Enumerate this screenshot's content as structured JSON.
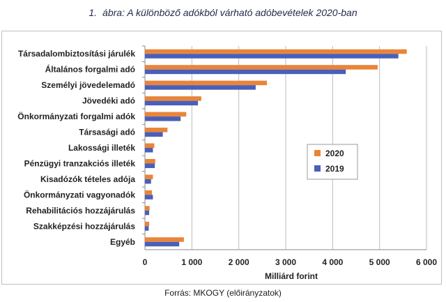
{
  "title": {
    "number": "1.",
    "text": "ábra: A különböző adókból várható adóbevételek 2020-ban"
  },
  "source": "Forrás: MKOGY (előirányzatok)",
  "colors": {
    "2020": "#e8853a",
    "2019": "#4a5fb8"
  },
  "chart_data": {
    "type": "bar",
    "orientation": "horizontal",
    "categories": [
      "Társadalombiztosítási járulék",
      "Általános forgalmi adó",
      "Személyi jövedelemadó",
      "Jövedéki adó",
      "Önkormányzati forgalmi adók",
      "Társasági adó",
      "Lakossági illeték",
      "Pénzügyi tranzakciós illeték",
      "Kisadózók tételes adója",
      "Önkormányzati vagyonadók",
      "Rehabilitációs hozzájárulás",
      "Szakképzési hozzájárulás",
      "Egyéb"
    ],
    "series": [
      {
        "name": "2020",
        "values": [
          5580,
          4960,
          2600,
          1200,
          880,
          480,
          200,
          220,
          170,
          150,
          100,
          90,
          830
        ]
      },
      {
        "name": "2019",
        "values": [
          5400,
          4280,
          2360,
          1130,
          760,
          380,
          170,
          210,
          130,
          170,
          90,
          80,
          730
        ]
      }
    ],
    "xlabel": "Milliárd forint",
    "ylabel": "",
    "xlim": [
      0,
      6000
    ],
    "xticks": [
      "0",
      "1 000",
      "2 000",
      "3 000",
      "4 000",
      "5 000",
      "6 000"
    ],
    "xtick_values": [
      0,
      1000,
      2000,
      3000,
      4000,
      5000,
      6000
    ],
    "grid": true,
    "legend_position": "right"
  }
}
